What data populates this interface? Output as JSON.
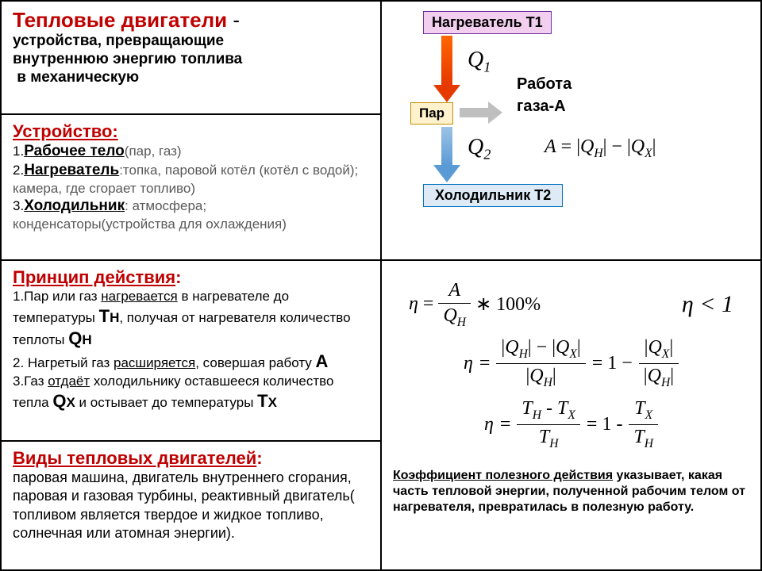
{
  "title": {
    "main": "Тепловые двигатели",
    "sep": " - "
  },
  "subtitle": "устройства, превращающие внутреннюю энергию топлива\n в механическую",
  "ustroistvo": {
    "heading": "Устройство:",
    "items": [
      {
        "n": "1.",
        "title": "Рабочее тело",
        "paren": "(пар, газ)"
      },
      {
        "n": "2.",
        "title": "Нагреватель",
        "paren": ":топка, паровой котёл (котёл с водой); камера, где сгорает топливо)"
      },
      {
        "n": "3.",
        "title": "Холодильник",
        "paren": ": атмосфера; конденсаторы(устройства для охлаждения)"
      }
    ]
  },
  "flow": {
    "heater": "Нагреватель Т1",
    "steam": "Пар",
    "cooler": "Холодильник Т2",
    "q1": "Q",
    "q1s": "1",
    "q2": "Q",
    "q2s": "2",
    "work1": "Работа",
    "work2": "газа-А",
    "formula_A": "A",
    "formula_eq": " = |",
    "formula_QH": "Q",
    "formula_H": "H",
    "formula_mid": "| − |",
    "formula_QX": "Q",
    "formula_X": "X",
    "formula_end": "|"
  },
  "principle": {
    "heading": "Принцип действия",
    "l1a": "1.Пар или газ ",
    "l1u": "нагревается",
    "l1b": " в нагревателе до температуры ",
    "TH": "Т",
    "TH_s": "Н",
    "l1c": ", получая от нагревателя количество теплоты ",
    "QH": "Q",
    "QH_s": "Н",
    "l2a": "2. Нагретый газ ",
    "l2u": "расширяется",
    "l2b": ", совершая работу ",
    "A": "А",
    "l3a": "3.Газ ",
    "l3u": "отдаёт",
    "l3b": " холодильнику оставшееся количество тепла ",
    "QX": "Q",
    "QX_s": "Х",
    "l3c": " и остывает до температуры ",
    "TX": "Т",
    "TX_s": "Х"
  },
  "kinds": {
    "heading": "Виды тепловых двигателей",
    "text": "паровая машина, двигатель внутреннего сгорания, паровая и газовая турбины, реактивный двигатель( топливом является твердое и жидкое топливо, солнечная или атомная энергии)."
  },
  "formulas": {
    "eta": "η",
    "eq": " = ",
    "A": "A",
    "QH_top": "Q",
    "H": "H",
    "hundred": " ∗ 100%",
    "eta_lt1": "η < 1",
    "minus": " − ",
    "one_minus": " = 1 − ",
    "abs_o": "|",
    "abs_c": "|",
    "QX": "Q",
    "X": "X",
    "TH": "T",
    "TX": "T",
    "kpd_u": "Коэффициент полезного действия",
    "kpd_text": " указывает, какая часть тепловой энергии, полученной рабочим телом от нагревателя, превратилась в полезную работу."
  },
  "colors": {
    "accent": "#c00000",
    "heater_bg": "#f2ceef",
    "heater_bd": "#7030a0",
    "steam_bg": "#fff2cc",
    "steam_bd": "#bf9000",
    "cooler_bg": "#deebf7",
    "cooler_bd": "#0070c0"
  }
}
